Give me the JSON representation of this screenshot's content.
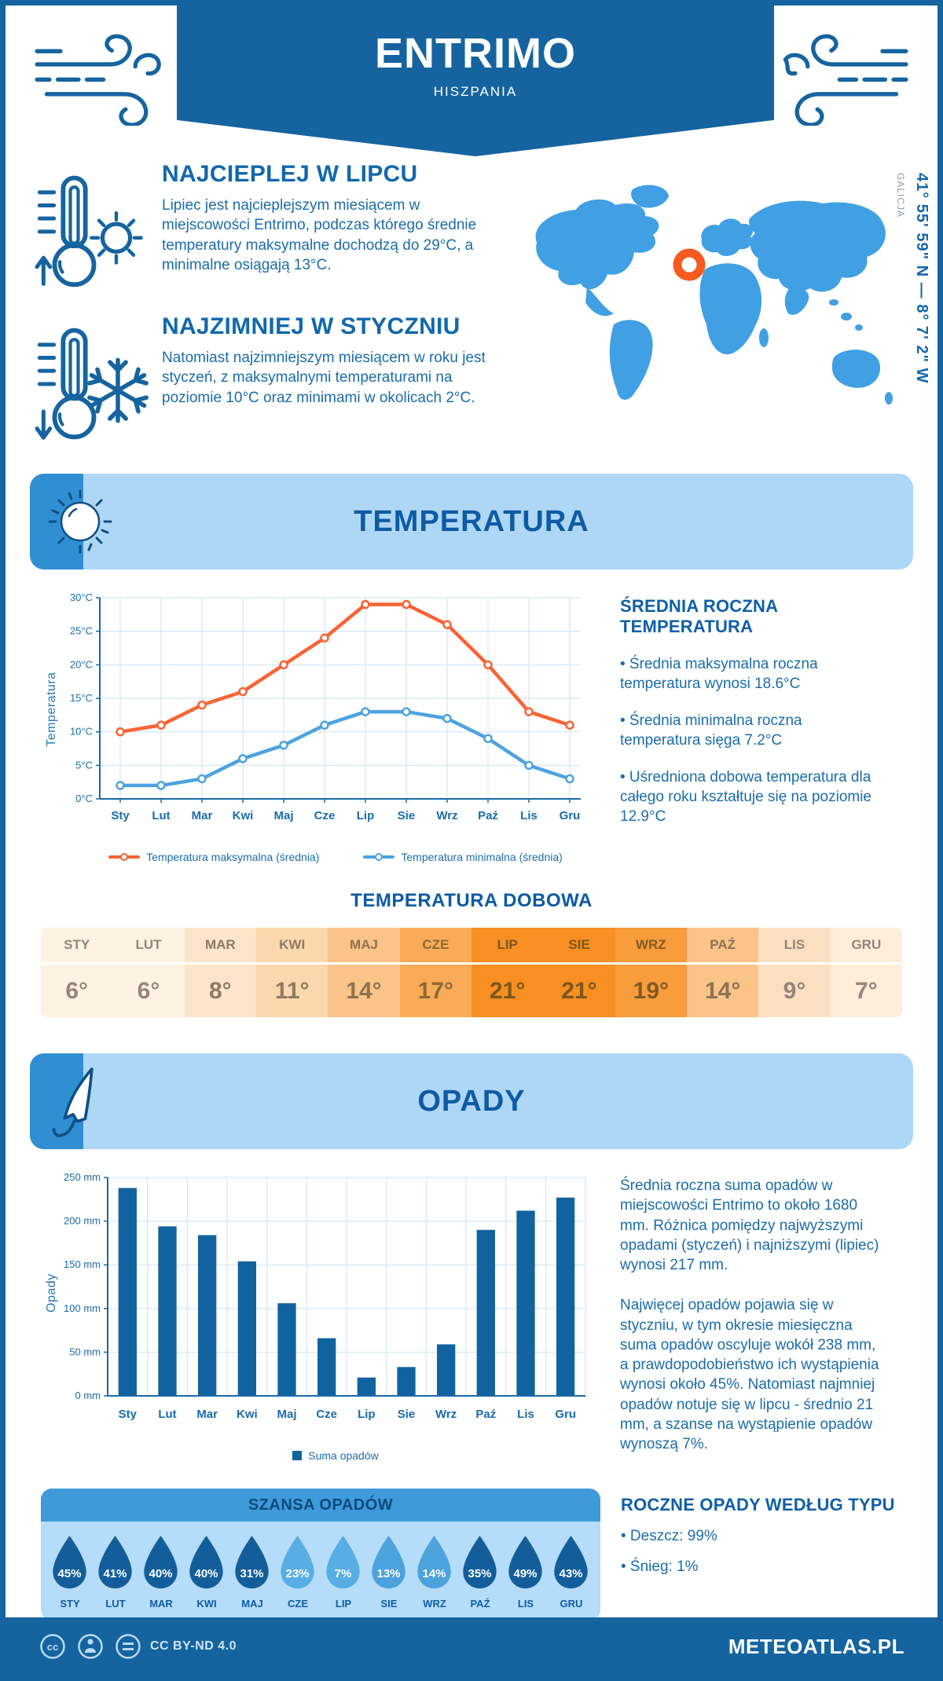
{
  "colors": {
    "frame": "#15649f",
    "banner_bg": "#15649f",
    "section_bg": "#aed7f5",
    "section_square": "#2f8fd2",
    "heading_blue": "#0f5fa8",
    "body_blue": "#1b6cab",
    "map_blue": "#41a0e3",
    "marker_orange": "#f85a1f",
    "temp_max_line": "#f96333",
    "temp_min_line": "#4da3e0",
    "bar_blue": "#1163a0",
    "grid": "#cfe2f2",
    "axis": "#1a6aa5"
  },
  "header": {
    "title": "ENTRIMO",
    "subtitle": "HISZPANIA"
  },
  "intro": {
    "warmest": {
      "heading": "NAJCIEPLEJ W LIPCU",
      "text": "Lipiec jest najcieplejszym miesiącem w miejscowości Entrimo, podczas którego średnie temperatury maksymalne dochodzą do 29°C, a minimalne osiągają 13°C."
    },
    "coldest": {
      "heading": "NAJZIMNIEJ W STYCZNIU",
      "text": "Natomiast najzimniejszym miesiącem w roku jest styczeń, z maksymalnymi temperaturami na poziomie 10°C oraz minimami w okolicach 2°C."
    }
  },
  "map": {
    "coordinates": "41° 55' 59\" N — 8° 7' 2\" W",
    "region": "GALICJA"
  },
  "temperature_section": {
    "title": "TEMPERATURA",
    "stats_heading": "ŚREDNIA ROCZNA TEMPERATURA",
    "stats": [
      "• Średnia maksymalna roczna temperatura wynosi 18.6°C",
      "• Średnia minimalna roczna temperatura sięga 7.2°C",
      "• Uśredniona dobowa temperatura dla całego roku kształtuje się na poziomie 12.9°C"
    ],
    "daily_title": "TEMPERATURA DOBOWA",
    "daily_cells": [
      {
        "month": "STY",
        "value": "6°",
        "bg": "#fdf2e3",
        "fg": "#95857a"
      },
      {
        "month": "LUT",
        "value": "6°",
        "bg": "#fdf2e3",
        "fg": "#95857a"
      },
      {
        "month": "MAR",
        "value": "8°",
        "bg": "#fce5cb",
        "fg": "#8f7a62"
      },
      {
        "month": "KWI",
        "value": "11°",
        "bg": "#fbd7ae",
        "fg": "#8f7a62"
      },
      {
        "month": "MAJ",
        "value": "14°",
        "bg": "#fac488",
        "fg": "#8d7351"
      },
      {
        "month": "CZE",
        "value": "17°",
        "bg": "#f9ab58",
        "fg": "#8b6a33"
      },
      {
        "month": "LIP",
        "value": "21°",
        "bg": "#f78f22",
        "fg": "#7d571d"
      },
      {
        "month": "SIE",
        "value": "21°",
        "bg": "#f78f22",
        "fg": "#7d571d"
      },
      {
        "month": "WRZ",
        "value": "19°",
        "bg": "#f89c3c",
        "fg": "#7f5c23"
      },
      {
        "month": "PAŹ",
        "value": "14°",
        "bg": "#fac488",
        "fg": "#8d7351"
      },
      {
        "month": "LIS",
        "value": "9°",
        "bg": "#fcdfc0",
        "fg": "#95857a"
      },
      {
        "month": "GRU",
        "value": "7°",
        "bg": "#fdedd9",
        "fg": "#95857a"
      }
    ]
  },
  "precipitation_section": {
    "title": "OPADY",
    "text1": "Średnia roczna suma opadów w miejscowości Entrimo to około 1680 mm. Różnica pomiędzy najwyższymi opadami (styczeń) i najniższymi (lipiec) wynosi 217 mm.",
    "text2": "Najwięcej opadów pojawia się w styczniu, w tym okresie miesięczna suma opadów oscyluje wokół 238 mm, a prawdopodobieństwo ich wystąpienia wynosi około 45%. Natomiast najmniej opadów notuje się w lipcu - średnio 21 mm, a szanse na wystąpienie opadów wynoszą 7%.",
    "chance_title": "SZANSA OPADÓW",
    "chance_drops": [
      {
        "month": "STY",
        "value": "45%",
        "fill": "#135e9a"
      },
      {
        "month": "LUT",
        "value": "41%",
        "fill": "#135e9a"
      },
      {
        "month": "MAR",
        "value": "40%",
        "fill": "#135e9a"
      },
      {
        "month": "KWI",
        "value": "40%",
        "fill": "#135e9a"
      },
      {
        "month": "MAJ",
        "value": "31%",
        "fill": "#135e9a"
      },
      {
        "month": "CZE",
        "value": "23%",
        "fill": "#58ade4"
      },
      {
        "month": "LIP",
        "value": "7%",
        "fill": "#58ade4"
      },
      {
        "month": "SIE",
        "value": "13%",
        "fill": "#4ba2dd"
      },
      {
        "month": "WRZ",
        "value": "14%",
        "fill": "#4ba2dd"
      },
      {
        "month": "PAŹ",
        "value": "35%",
        "fill": "#135e9a"
      },
      {
        "month": "LIS",
        "value": "49%",
        "fill": "#135e9a"
      },
      {
        "month": "GRU",
        "value": "43%",
        "fill": "#135e9a"
      }
    ],
    "type_heading": "ROCZNE OPADY WEDŁUG TYPU",
    "type_items": [
      "• Deszcz: 99%",
      "• Śnieg: 1%"
    ]
  },
  "footer": {
    "license": "CC BY-ND 4.0",
    "brand": "METEOATLAS.PL"
  },
  "chart_data": [
    {
      "type": "line",
      "title": "Temperatura",
      "ylabel": "Temperatura",
      "categories": [
        "Sty",
        "Lut",
        "Mar",
        "Kwi",
        "Maj",
        "Cze",
        "Lip",
        "Sie",
        "Wrz",
        "Paź",
        "Lis",
        "Gru"
      ],
      "series": [
        {
          "name": "Temperatura maksymalna (średnia)",
          "color": "#f96333",
          "values": [
            10,
            11,
            14,
            16,
            20,
            24,
            29,
            29,
            26,
            20,
            13,
            11
          ]
        },
        {
          "name": "Temperatura minimalna (średnia)",
          "color": "#4da3e0",
          "values": [
            2,
            2,
            3,
            6,
            8,
            11,
            13,
            13,
            12,
            9,
            5,
            3
          ]
        }
      ],
      "ylim": [
        0,
        30
      ],
      "ytick_step": 5,
      "tick_suffix": "°C",
      "grid": true,
      "legend_position": "bottom"
    },
    {
      "type": "bar",
      "title": "Opady",
      "ylabel": "Opady",
      "categories": [
        "Sty",
        "Lut",
        "Mar",
        "Kwi",
        "Maj",
        "Cze",
        "Lip",
        "Sie",
        "Wrz",
        "Paź",
        "Lis",
        "Gru"
      ],
      "series": [
        {
          "name": "Suma opadów",
          "color": "#1163a0",
          "values": [
            238,
            194,
            184,
            154,
            106,
            66,
            21,
            33,
            59,
            190,
            212,
            227
          ]
        }
      ],
      "ylim": [
        0,
        250
      ],
      "ytick_step": 50,
      "tick_suffix": " mm",
      "grid": true,
      "legend_position": "bottom"
    }
  ]
}
